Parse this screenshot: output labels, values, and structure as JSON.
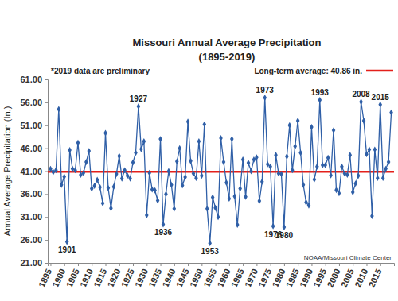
{
  "chart_data": {
    "type": "line",
    "title": "Missouri Annual Average Precipitation",
    "subtitle": "(1895-2019)",
    "note": "*2019 data are preliminary",
    "y_label": "Annual Average Precipitation (In.)",
    "source": "NOAA/Missouri Climate Center",
    "color": "#2f5fa7",
    "marker": "diamond",
    "line_style": "solid",
    "grid": false,
    "legend": "top-right",
    "reference_line": {
      "label": "Long-term average: 40.86 in.",
      "value": 40.86,
      "color": "#e3201b"
    },
    "x": [
      1895,
      1896,
      1897,
      1898,
      1899,
      1900,
      1901,
      1902,
      1903,
      1904,
      1905,
      1906,
      1907,
      1908,
      1909,
      1910,
      1911,
      1912,
      1913,
      1914,
      1915,
      1916,
      1917,
      1918,
      1919,
      1920,
      1921,
      1922,
      1923,
      1924,
      1925,
      1926,
      1927,
      1928,
      1929,
      1930,
      1931,
      1932,
      1933,
      1934,
      1935,
      1936,
      1937,
      1938,
      1939,
      1940,
      1941,
      1942,
      1943,
      1944,
      1945,
      1946,
      1947,
      1948,
      1949,
      1950,
      1951,
      1952,
      1953,
      1954,
      1955,
      1956,
      1957,
      1958,
      1959,
      1960,
      1961,
      1962,
      1963,
      1964,
      1965,
      1966,
      1967,
      1968,
      1969,
      1970,
      1971,
      1972,
      1973,
      1974,
      1975,
      1976,
      1977,
      1978,
      1979,
      1980,
      1981,
      1982,
      1983,
      1984,
      1985,
      1986,
      1987,
      1988,
      1989,
      1990,
      1991,
      1992,
      1993,
      1994,
      1995,
      1996,
      1997,
      1998,
      1999,
      2000,
      2001,
      2002,
      2003,
      2004,
      2005,
      2006,
      2007,
      2008,
      2009,
      2010,
      2011,
      2012,
      2013,
      2014,
      2015,
      2016,
      2017,
      2018,
      2019
    ],
    "values": [
      41.5,
      40.8,
      41.2,
      54.5,
      38.0,
      39.8,
      25.6,
      45.6,
      41.5,
      41.2,
      47.2,
      40.2,
      40.6,
      43.0,
      45.4,
      37.2,
      37.8,
      39.1,
      37.5,
      34.0,
      49.3,
      37.3,
      32.9,
      37.6,
      40.4,
      44.3,
      39.4,
      41.2,
      40.0,
      39.4,
      42.9,
      45.0,
      55.1,
      45.8,
      47.5,
      31.4,
      40.6,
      37.0,
      36.8,
      34.6,
      48.0,
      29.4,
      36.0,
      41.0,
      38.0,
      32.8,
      43.1,
      46.0,
      37.9,
      39.7,
      51.8,
      43.2,
      40.5,
      39.5,
      47.5,
      40.0,
      51.2,
      32.8,
      25.3,
      35.3,
      33.0,
      31.0,
      48.2,
      43.0,
      38.5,
      35.0,
      48.0,
      35.5,
      29.3,
      37.2,
      43.5,
      35.4,
      42.8,
      41.0,
      43.5,
      44.0,
      34.5,
      38.7,
      57.0,
      42.5,
      42.0,
      29.0,
      44.5,
      40.5,
      40.4,
      28.8,
      44.2,
      51.0,
      41.2,
      46.4,
      52.0,
      45.0,
      38.0,
      34.2,
      33.5,
      50.6,
      39.2,
      42.0,
      56.5,
      42.3,
      42.3,
      43.9,
      40.1,
      49.9,
      36.9,
      36.2,
      42.0,
      40.5,
      40.2,
      44.5,
      36.4,
      38.3,
      40.0,
      56.1,
      52.0,
      44.7,
      45.7,
      31.2,
      45.7,
      39.5,
      55.5,
      39.5,
      41.5,
      43.0,
      53.8
    ],
    "xlim": [
      1894,
      2020
    ],
    "xticks": [
      1895,
      1900,
      1905,
      1910,
      1915,
      1920,
      1925,
      1930,
      1935,
      1940,
      1945,
      1950,
      1955,
      1960,
      1965,
      1970,
      1975,
      1980,
      1985,
      1990,
      1995,
      2000,
      2005,
      2010,
      2015
    ],
    "ylim": [
      21,
      61
    ],
    "yticks": [
      {
        "value": 21,
        "label": "21.00"
      },
      {
        "value": 26,
        "label": "26.00"
      },
      {
        "value": 31,
        "label": "31.00"
      },
      {
        "value": 36,
        "label": "36.00"
      },
      {
        "value": 41,
        "label": "41.00"
      },
      {
        "value": 46,
        "label": "46.00"
      },
      {
        "value": 51,
        "label": "51.00"
      },
      {
        "value": 56,
        "label": "56.00"
      },
      {
        "value": 61,
        "label": "61.00"
      }
    ],
    "annotations": [
      {
        "text": "1901",
        "x": 1901
      },
      {
        "text": "1927",
        "x": 1927
      },
      {
        "text": "1936",
        "x": 1936
      },
      {
        "text": "1953",
        "x": 1953
      },
      {
        "text": "1973",
        "x": 1973
      },
      {
        "text": "1976",
        "x": 1976
      },
      {
        "text": "1980",
        "x": 1980
      },
      {
        "text": "1993",
        "x": 1993
      },
      {
        "text": "2008",
        "x": 2008
      },
      {
        "text": "2015",
        "x": 2015
      }
    ]
  }
}
